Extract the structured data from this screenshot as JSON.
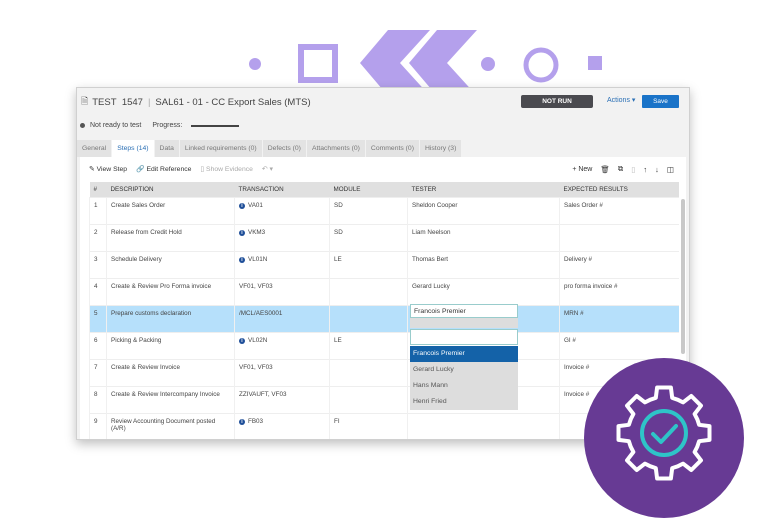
{
  "header": {
    "test_label": "TEST",
    "test_id": "1547",
    "title": "SAL61 - 01 - CC Export Sales (MTS)",
    "status_button": "NOT RUN",
    "actions": "Actions ▾",
    "save": "Save"
  },
  "status": {
    "state": "Not ready to test",
    "progress_label": "Progress:"
  },
  "tabs": [
    "General",
    "Steps (14)",
    "Data",
    "Linked requirements (0)",
    "Defects (0)",
    "Attachments (0)",
    "Comments (0)",
    "History (3)"
  ],
  "toolbar": {
    "view_step": "View Step",
    "edit_reference": "Edit Reference",
    "show_evidence": "Show Evidence",
    "new": "New"
  },
  "table": {
    "headers": [
      "#",
      "DESCRIPTION",
      "TRANSACTION",
      "MODULE",
      "TESTER",
      "EXPECTED RESULTS"
    ],
    "rows": [
      {
        "n": "1",
        "desc": "Create Sales Order",
        "tx": "VA01",
        "info": true,
        "mod": "SD",
        "tester": "Sheldon Cooper",
        "exp": "Sales Order #"
      },
      {
        "n": "2",
        "desc": "Release from Credit Hold",
        "tx": "VKM3",
        "info": true,
        "mod": "SD",
        "tester": "Liam Neelson",
        "exp": ""
      },
      {
        "n": "3",
        "desc": "Schedule Delivery",
        "tx": "VL01N",
        "info": true,
        "mod": "LE",
        "tester": "Thomas Bert",
        "exp": "Delivery #"
      },
      {
        "n": "4",
        "desc": "Create & Review Pro Forma invoice",
        "tx": "VF01, VF03",
        "info": false,
        "mod": "",
        "tester": "Gerard Lucky",
        "exp": "pro forma invoice #"
      },
      {
        "n": "5",
        "desc": "Prepare customs declaration",
        "tx": "/MCL/AES0001",
        "info": false,
        "mod": "",
        "tester": "",
        "exp": "MRN #"
      },
      {
        "n": "6",
        "desc": "Picking & Packing",
        "tx": "VL02N",
        "info": true,
        "mod": "LE",
        "tester": "",
        "exp": "GI #"
      },
      {
        "n": "7",
        "desc": "Create & Review Invoice",
        "tx": "VF01, VF03",
        "info": false,
        "mod": "",
        "tester": "",
        "exp": "Invoice #"
      },
      {
        "n": "8",
        "desc": "Create & Review Intercompany Invoice",
        "tx": "ZZIVAUFT, VF03",
        "info": false,
        "mod": "",
        "tester": "",
        "exp": "Invoice #"
      },
      {
        "n": "9",
        "desc": "Review Accounting Document posted (A/R)",
        "tx": "FB03",
        "info": true,
        "mod": "FI",
        "tester": "",
        "exp": ""
      }
    ]
  },
  "tester_dropdown": {
    "value": "Francois Premier",
    "options": [
      "Francois Premier",
      "Gerard Lucky",
      "Hans Mann",
      "Henri Fried"
    ],
    "selected": "Francois Premier"
  },
  "colors": {
    "accent": "#1a73c8",
    "deco": "#b4a0ec",
    "badge": "#673a94",
    "check": "#2ec4c8",
    "selected_row": "#b6e0fb"
  }
}
